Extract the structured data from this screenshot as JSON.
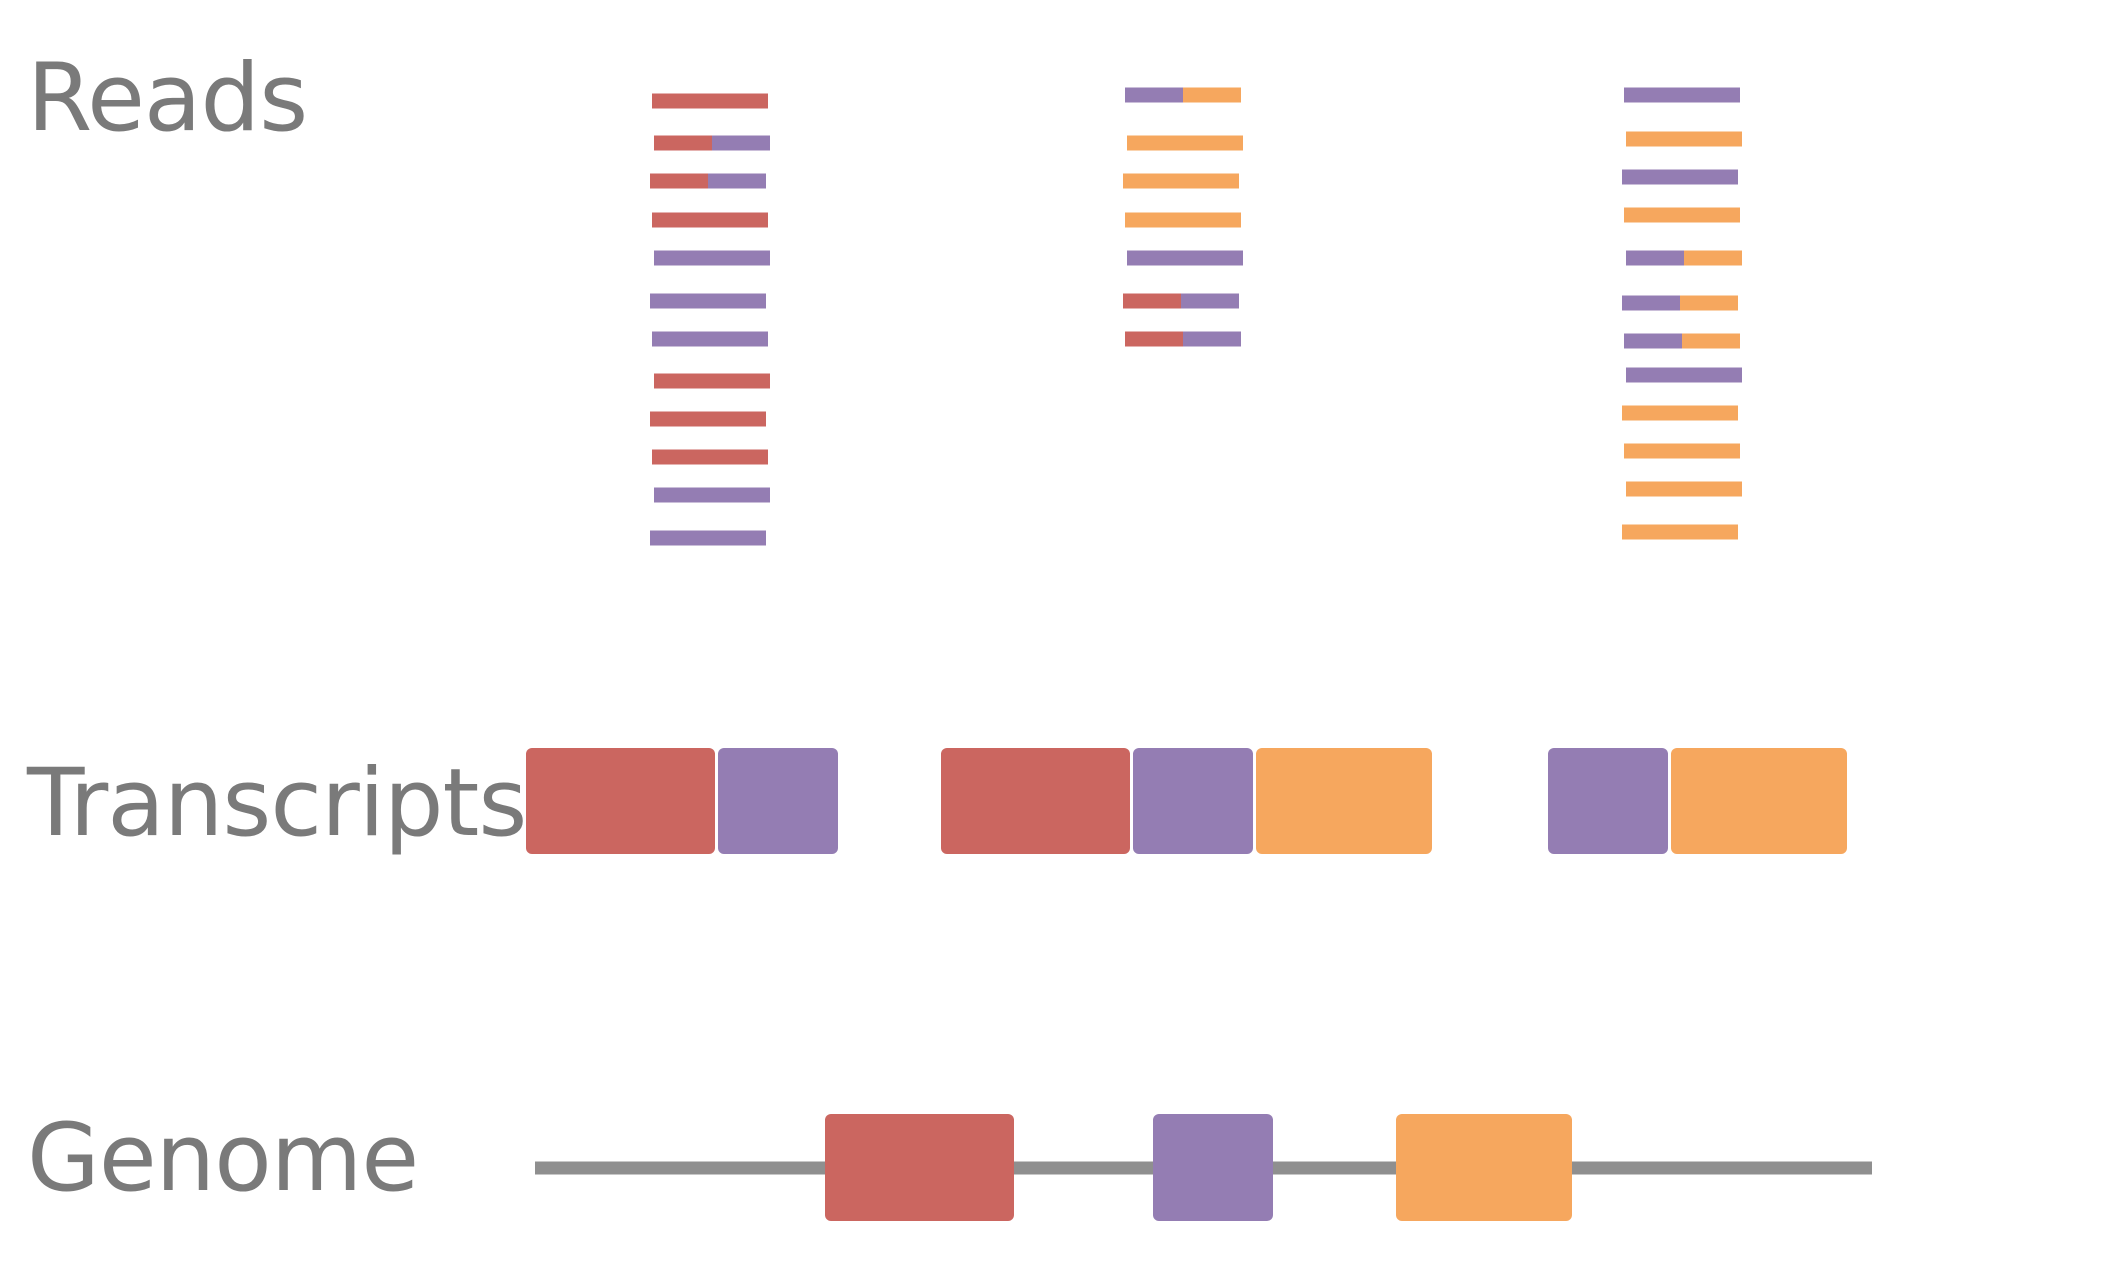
{
  "labels": {
    "reads": "Reads",
    "transcripts": "Transcripts",
    "genome": "Genome"
  },
  "exons": [
    {
      "id": "exon-1",
      "color": "#cb6660"
    },
    {
      "id": "exon-2",
      "color": "#947db3"
    },
    {
      "id": "exon-3",
      "color": "#f6a75e"
    }
  ],
  "genome_line_color": "#8f8f8f",
  "transcripts": [
    {
      "id": "transcript-1",
      "exons": [
        "exon-1",
        "exon-2"
      ]
    },
    {
      "id": "transcript-2",
      "exons": [
        "exon-1",
        "exon-2",
        "exon-3"
      ]
    },
    {
      "id": "transcript-3",
      "exons": [
        "exon-2",
        "exon-3"
      ]
    }
  ],
  "reads": [
    {
      "group": "transcript-1",
      "reads": [
        [
          "exon-1"
        ],
        [
          "exon-1",
          "exon-2"
        ],
        [
          "exon-1",
          "exon-2"
        ],
        [
          "exon-1"
        ],
        [
          "exon-2"
        ],
        [
          "exon-2"
        ],
        [
          "exon-2"
        ],
        [
          "exon-1"
        ],
        [
          "exon-1"
        ],
        [
          "exon-1"
        ],
        [
          "exon-2"
        ],
        [
          "exon-2"
        ]
      ]
    },
    {
      "group": "transcript-2",
      "reads": [
        [
          "exon-2",
          "exon-3"
        ],
        [
          "exon-3"
        ],
        [
          "exon-3"
        ],
        [
          "exon-3"
        ],
        [
          "exon-2"
        ],
        [
          "exon-1",
          "exon-2"
        ],
        [
          "exon-1",
          "exon-2"
        ]
      ]
    },
    {
      "group": "transcript-3",
      "reads": [
        [
          "exon-2"
        ],
        [
          "exon-3"
        ],
        [
          "exon-2"
        ],
        [
          "exon-3"
        ],
        [
          "exon-2",
          "exon-3"
        ],
        [
          "exon-2",
          "exon-3"
        ],
        [
          "exon-2",
          "exon-3"
        ],
        [
          "exon-2"
        ],
        [
          "exon-3"
        ],
        [
          "exon-3"
        ],
        [
          "exon-3"
        ],
        [
          "exon-3"
        ]
      ]
    }
  ]
}
